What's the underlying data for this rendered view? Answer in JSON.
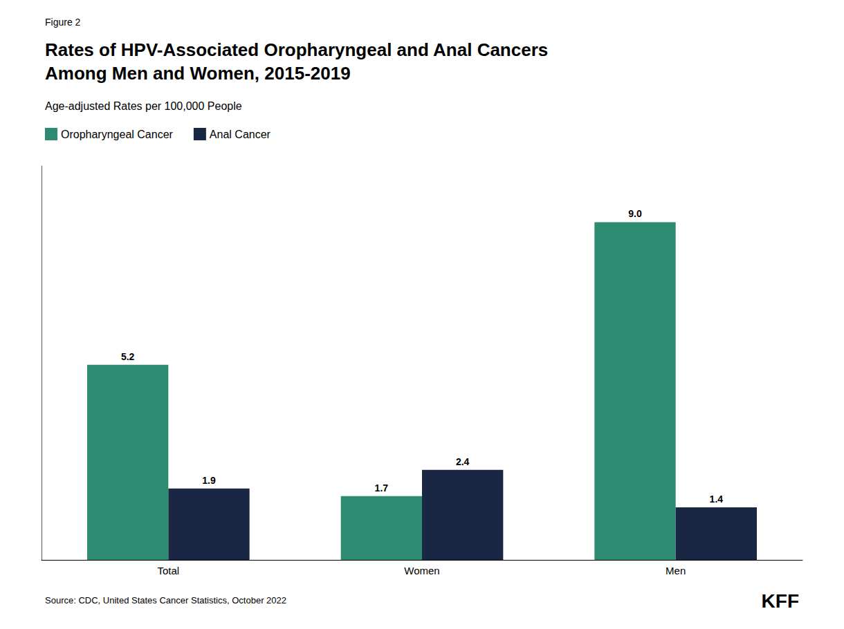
{
  "chart_data": {
    "type": "bar",
    "title": "Rates of HPV-Associated Oropharyngeal and Anal Cancers\nAmong Men and Women, 2015-2019",
    "subtitle": "Age-adjusted Rates per 100,000 People",
    "annotations": [
      "Figure 2",
      "Source: CDC, United States Cancer Statistics, October 2022",
      "KFF"
    ],
    "categories": [
      "Total",
      "Women",
      "Men"
    ],
    "series": [
      {
        "name": "Oropharyngeal Cancer",
        "color": "#2d8b72",
        "values": [
          5.2,
          1.7,
          9.0
        ],
        "value_labels": [
          "5.2",
          "1.7",
          "9.0"
        ]
      },
      {
        "name": "Anal Cancer",
        "color": "#1a2744",
        "values": [
          1.9,
          2.4,
          1.4
        ]
      }
    ],
    "ylim": [
      0,
      10.5
    ],
    "tick_labels": "x",
    "grid": false,
    "legend": "upper left",
    "data_labels": true
  }
}
